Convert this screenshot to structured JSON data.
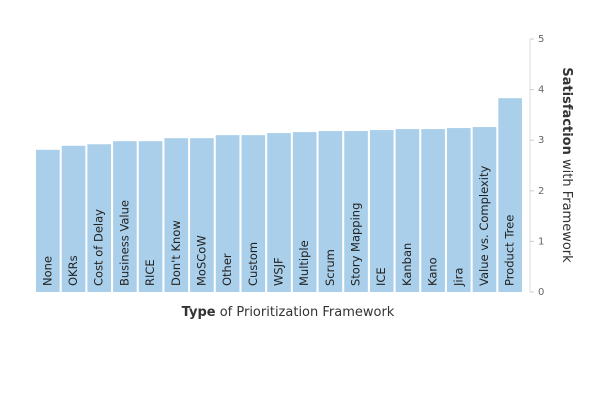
{
  "chart_data": {
    "type": "bar",
    "x_label": [
      "Type",
      "of Prioritization Framework"
    ],
    "y_label": [
      "Satisfaction",
      "with Framework"
    ],
    "categories": [
      "None",
      "OKRs",
      "Cost of Delay",
      "Business Value",
      "RICE",
      "Don't Know",
      "MoSCoW",
      "Other",
      "Custom",
      "WSJF",
      "Multiple",
      "Scrum",
      "Story Mapping",
      "ICE",
      "Kanban",
      "Kano",
      "Jira",
      "Value vs. Complexity",
      "Product Tree"
    ],
    "values": [
      2.81,
      2.89,
      2.92,
      2.98,
      2.98,
      3.04,
      3.04,
      3.1,
      3.1,
      3.14,
      3.16,
      3.18,
      3.18,
      3.2,
      3.22,
      3.22,
      3.24,
      3.26,
      3.83
    ],
    "color": "#a9cfea",
    "ylim": [
      0,
      5
    ],
    "yticks": [
      0,
      1,
      2,
      3,
      4,
      5
    ]
  }
}
